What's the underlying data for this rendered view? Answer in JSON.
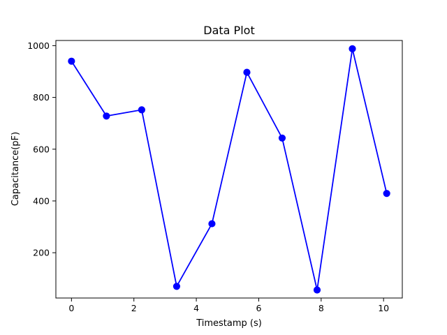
{
  "chart_data": {
    "type": "line",
    "title": "Data Plot",
    "xlabel": "Timestamp (s)",
    "ylabel": "Capacitance(pF)",
    "xlim": [
      -0.5,
      10.6
    ],
    "ylim": [
      25,
      1020
    ],
    "xticks": [
      0,
      2,
      4,
      6,
      8,
      10
    ],
    "yticks": [
      200,
      400,
      600,
      800,
      1000
    ],
    "grid": false,
    "legend": "none",
    "series": [
      {
        "color": "#0000ff",
        "marker": "circle",
        "x": [
          0,
          1.12,
          2.25,
          3.37,
          4.5,
          5.62,
          6.75,
          7.87,
          9.0,
          10.1
        ],
        "y": [
          940,
          728,
          752,
          70,
          312,
          897,
          643,
          56,
          988,
          429
        ]
      }
    ]
  }
}
